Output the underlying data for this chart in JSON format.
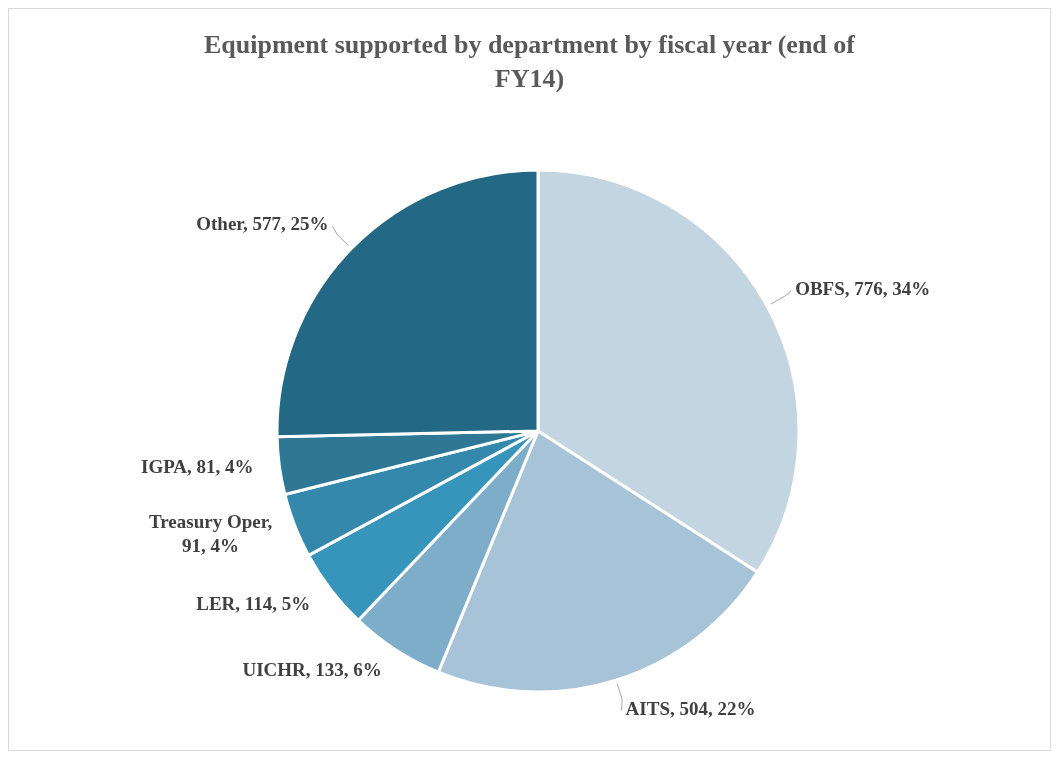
{
  "chart_data": {
    "type": "pie",
    "title": "Equipment supported by department by fiscal year (end of FY14)",
    "categories": [
      "OBFS",
      "AITS",
      "UICHR",
      "LER",
      "Treasury Oper",
      "IGPA",
      "Other"
    ],
    "values": [
      776,
      504,
      133,
      114,
      91,
      81,
      577
    ],
    "value_labels": [
      ", 776, 34%",
      ", 504, 22%",
      ", 133, 6%",
      ", 114, 5%",
      ", 91, 4%",
      ", 81, 4%",
      ", 577, 25%"
    ],
    "colors": [
      "#c3d5e1",
      "#a6c3d7",
      "#7eadca",
      "#3795bb",
      "#3388ab",
      "#2e7896",
      "#236884"
    ]
  }
}
